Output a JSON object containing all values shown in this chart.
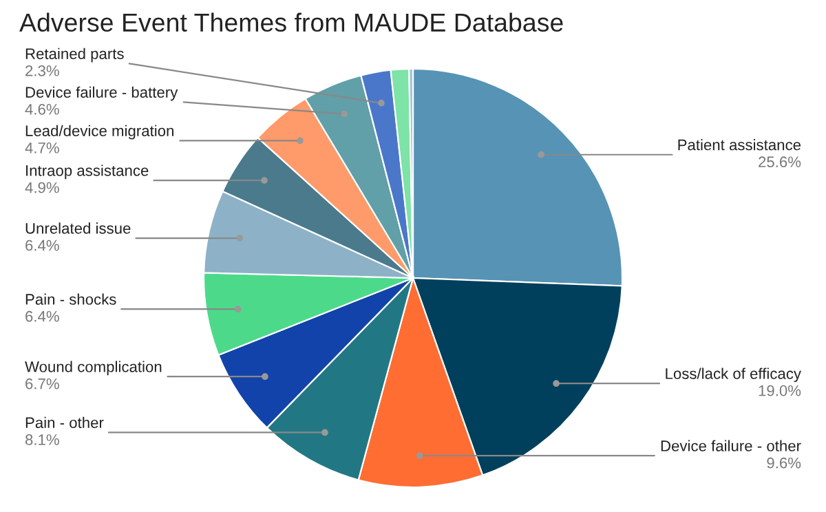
{
  "chart_data": {
    "type": "pie",
    "title": "Adverse Event Themes from MAUDE Database",
    "categories": [
      "Patient assistance",
      "Loss/lack of efficacy",
      "Device failure - other",
      "Pain - other",
      "Wound complication",
      "Pain - shocks",
      "Unrelated issue",
      "Intraop assistance",
      "Lead/device migration",
      "Device failure - battery",
      "Retained parts",
      null,
      null
    ],
    "values": [
      25.6,
      19.0,
      9.6,
      8.1,
      6.7,
      6.4,
      6.4,
      4.9,
      4.7,
      4.6,
      2.3,
      1.4,
      0.3
    ],
    "value_labels": [
      "25.6%",
      "19.0%",
      "9.6%",
      "8.1%",
      "6.7%",
      "6.4%",
      "6.4%",
      "4.9%",
      "4.7%",
      "4.6%",
      "2.3%",
      null,
      null
    ],
    "colors": [
      "#5793b4",
      "#01405c",
      "#ff6d33",
      "#217884",
      "#1243aa",
      "#4cda8a",
      "#8db2c8",
      "#4a7a8c",
      "#ff9a6b",
      "#61a0a8",
      "#4a77c9",
      "#7de3a6",
      "#9fc4d4"
    ],
    "legend": false
  }
}
